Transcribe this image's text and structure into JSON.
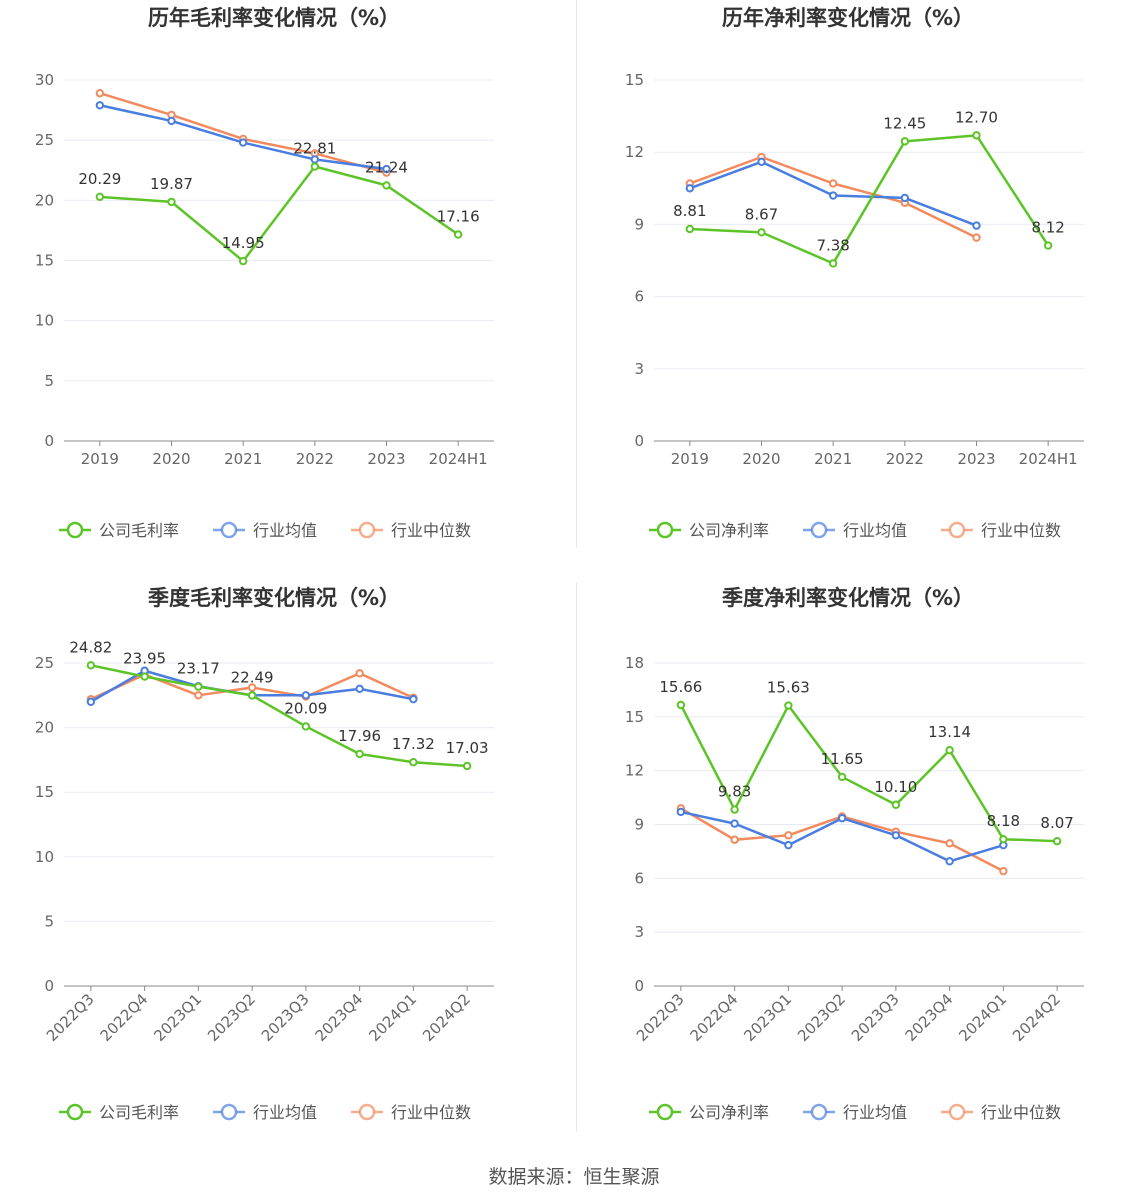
{
  "colors": {
    "company": "#5cc427",
    "avg": "#4a7de0",
    "median": "#f28a5e",
    "grid": "#e8ebf3",
    "axis": "#888888"
  },
  "source": "数据来源：恒生聚源",
  "chart_data": [
    {
      "type": "line",
      "title": "历年毛利率变化情况（%）",
      "categories": [
        "2019",
        "2020",
        "2021",
        "2022",
        "2023",
        "2024H1"
      ],
      "ylim": [
        0,
        30
      ],
      "yticks": [
        0,
        5,
        10,
        15,
        20,
        25,
        30
      ],
      "grid": true,
      "legend_position": "bottom",
      "series": [
        {
          "name": "公司毛利率",
          "values": [
            20.29,
            19.87,
            14.95,
            22.81,
            21.24,
            17.16
          ],
          "labels": [
            "20.29",
            "19.87",
            "14.95",
            "22.81",
            "21.24",
            "17.16"
          ]
        },
        {
          "name": "行业均值",
          "values": [
            27.9,
            26.6,
            24.8,
            23.4,
            22.6,
            null
          ]
        },
        {
          "name": "行业中位数",
          "values": [
            28.9,
            27.1,
            25.1,
            23.9,
            22.3,
            null
          ]
        }
      ]
    },
    {
      "type": "line",
      "title": "历年净利率变化情况（%）",
      "categories": [
        "2019",
        "2020",
        "2021",
        "2022",
        "2023",
        "2024H1"
      ],
      "ylim": [
        0,
        15
      ],
      "yticks": [
        0,
        3,
        6,
        9,
        12,
        15
      ],
      "grid": true,
      "legend_position": "bottom",
      "series": [
        {
          "name": "公司净利率",
          "values": [
            8.81,
            8.67,
            7.38,
            12.45,
            12.7,
            8.12
          ],
          "labels": [
            "8.81",
            "8.67",
            "7.38",
            "12.45",
            "12.70",
            "8.12"
          ]
        },
        {
          "name": "行业均值",
          "values": [
            10.5,
            11.6,
            10.2,
            10.1,
            8.95,
            null
          ]
        },
        {
          "name": "行业中位数",
          "values": [
            10.7,
            11.8,
            10.7,
            9.9,
            8.45,
            null
          ]
        }
      ]
    },
    {
      "type": "line",
      "title": "季度毛利率变化情况（%）",
      "categories": [
        "2022Q3",
        "2022Q4",
        "2023Q1",
        "2023Q2",
        "2023Q3",
        "2023Q4",
        "2024Q1",
        "2024Q2"
      ],
      "ylim": [
        0,
        25
      ],
      "yticks": [
        0,
        5,
        10,
        15,
        20,
        25
      ],
      "grid": true,
      "legend_position": "bottom",
      "series": [
        {
          "name": "公司毛利率",
          "values": [
            24.82,
            23.95,
            23.17,
            22.49,
            20.09,
            17.96,
            17.32,
            17.03
          ],
          "labels": [
            "24.82",
            "23.95",
            "23.17",
            "22.49",
            "20.09",
            "17.96",
            "17.32",
            "17.03"
          ]
        },
        {
          "name": "行业均值",
          "values": [
            22.0,
            24.4,
            23.2,
            22.5,
            22.5,
            23.0,
            22.2,
            null
          ]
        },
        {
          "name": "行业中位数",
          "values": [
            22.2,
            24.1,
            22.5,
            23.1,
            22.4,
            24.2,
            22.3,
            null
          ]
        }
      ]
    },
    {
      "type": "line",
      "title": "季度净利率变化情况（%）",
      "categories": [
        "2022Q3",
        "2022Q4",
        "2023Q1",
        "2023Q2",
        "2023Q3",
        "2023Q4",
        "2024Q1",
        "2024Q2"
      ],
      "ylim": [
        0,
        18
      ],
      "yticks": [
        0,
        3,
        6,
        9,
        12,
        15,
        18
      ],
      "grid": true,
      "legend_position": "bottom",
      "series": [
        {
          "name": "公司净利率",
          "values": [
            15.66,
            9.83,
            15.63,
            11.65,
            10.1,
            13.14,
            8.18,
            8.07
          ],
          "labels": [
            "15.66",
            "9.83",
            "15.63",
            "11.65",
            "10.10",
            "13.14",
            "8.18",
            "8.07"
          ]
        },
        {
          "name": "行业均值",
          "values": [
            9.7,
            9.05,
            7.85,
            9.35,
            8.4,
            6.95,
            7.85,
            null
          ]
        },
        {
          "name": "行业中位数",
          "values": [
            9.9,
            8.15,
            8.4,
            9.45,
            8.6,
            7.95,
            6.4,
            null
          ]
        }
      ]
    }
  ]
}
